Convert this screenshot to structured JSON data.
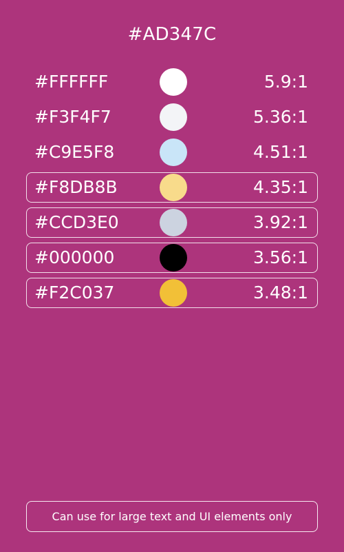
{
  "title": "#AD347C",
  "colors": [
    {
      "hex": "#FFFFFF",
      "ratio": "5.9:1",
      "swatch": "#FFFFFF"
    },
    {
      "hex": "#F3F4F7",
      "ratio": "5.36:1",
      "swatch": "#F3F4F7"
    },
    {
      "hex": "#C9E5F8",
      "ratio": "4.51:1",
      "swatch": "#C9E5F8"
    },
    {
      "hex": "#F8DB8B",
      "ratio": "4.35:1",
      "swatch": "#F8DB8B"
    },
    {
      "hex": "#CCD3E0",
      "ratio": "3.92:1",
      "swatch": "#CCD3E0"
    },
    {
      "hex": "#000000",
      "ratio": "3.56:1",
      "swatch": "#000000"
    },
    {
      "hex": "#F2C037",
      "ratio": "3.48:1",
      "swatch": "#F2C037"
    }
  ],
  "footer_note": "Can use for large text and UI elements only",
  "theme": {
    "background": "#AD347C",
    "foreground": "#FFFFFF"
  }
}
